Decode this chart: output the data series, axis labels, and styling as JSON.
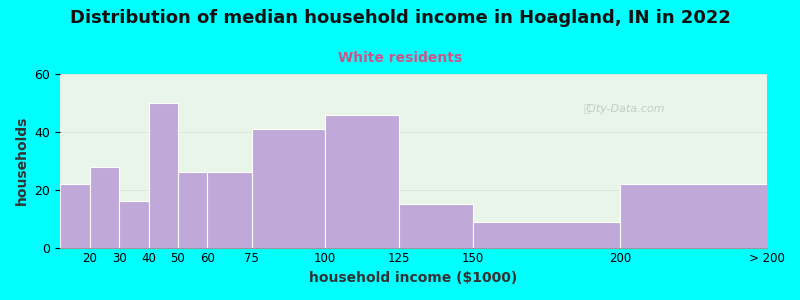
{
  "title": "Distribution of median household income in Hoagland, IN in 2022",
  "subtitle": "White residents",
  "xlabel": "household income ($1000)",
  "ylabel": "households",
  "background_color": "#00FFFF",
  "plot_bg_left": "#e8f5e8",
  "plot_bg_right": "#f8f8ff",
  "bar_color": "#c0a8d8",
  "bar_edge_color": "#c0a8d8",
  "title_fontsize": 13,
  "subtitle_fontsize": 10,
  "subtitle_color": "#cc5588",
  "xlabel_fontsize": 10,
  "ylabel_fontsize": 10,
  "bin_edges": [
    10,
    20,
    30,
    40,
    50,
    60,
    75,
    100,
    125,
    150,
    200,
    250
  ],
  "bar_heights": [
    22,
    28,
    16,
    50,
    26,
    26,
    41,
    46,
    15,
    9,
    22
  ],
  "tick_labels": [
    "20",
    "30",
    "40",
    "50",
    "60",
    "75",
    "100",
    "125",
    "150",
    "200",
    "> 200"
  ],
  "ylim": [
    0,
    60
  ],
  "yticks": [
    0,
    20,
    40,
    60
  ],
  "watermark": "City-Data.com"
}
